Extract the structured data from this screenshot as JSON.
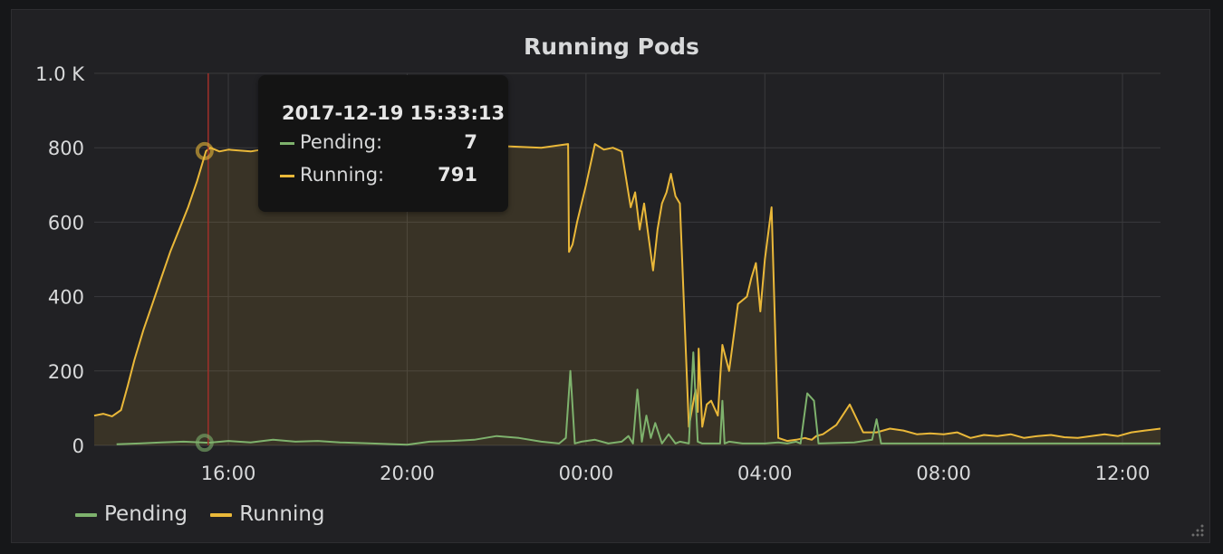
{
  "panel": {
    "title": "Running Pods"
  },
  "tooltip": {
    "time": "2017-12-19 15:33:13",
    "rows": [
      {
        "label": "Pending:",
        "value": "7",
        "color": "#7eb26d"
      },
      {
        "label": "Running:",
        "value": "791",
        "color": "#eab839"
      }
    ]
  },
  "legend": [
    {
      "label": "Pending",
      "color": "#7eb26d"
    },
    {
      "label": "Running",
      "color": "#eab839"
    }
  ],
  "chart_data": {
    "type": "line",
    "title": "Running Pods",
    "xlabel": "",
    "ylabel": "",
    "x_unit": "hours since 2017-12-19 00:00 (values past 24 are 2017-12-20)",
    "xlim": [
      13.0,
      36.85
    ],
    "ylim": [
      0,
      1000
    ],
    "x_ticks": [
      {
        "x": 16,
        "label": "16:00"
      },
      {
        "x": 20,
        "label": "20:00"
      },
      {
        "x": 24,
        "label": "00:00"
      },
      {
        "x": 28,
        "label": "04:00"
      },
      {
        "x": 32,
        "label": "08:00"
      },
      {
        "x": 36,
        "label": "12:00"
      }
    ],
    "y_ticks": [
      {
        "y": 0,
        "label": "0"
      },
      {
        "y": 200,
        "label": "200"
      },
      {
        "y": 400,
        "label": "400"
      },
      {
        "y": 600,
        "label": "600"
      },
      {
        "y": 800,
        "label": "800"
      },
      {
        "y": 1000,
        "label": "1.0 K"
      }
    ],
    "grid": true,
    "legend_position": "bottom-left",
    "crosshair": {
      "x": 15.55,
      "points": [
        {
          "series": "Running",
          "y": 791
        },
        {
          "series": "Pending",
          "y": 7
        }
      ]
    },
    "series": [
      {
        "name": "Running",
        "color": "#eab839",
        "fill": true,
        "x": [
          13.0,
          13.2,
          13.4,
          13.6,
          13.75,
          13.9,
          14.1,
          14.3,
          14.5,
          14.7,
          14.9,
          15.1,
          15.3,
          15.5,
          15.6,
          15.8,
          16.0,
          16.5,
          17.0,
          18.0,
          19.0,
          20.0,
          21.0,
          22.0,
          23.0,
          23.6,
          23.62,
          23.7,
          23.8,
          24.0,
          24.2,
          24.4,
          24.6,
          24.8,
          25.0,
          25.1,
          25.2,
          25.3,
          25.4,
          25.5,
          25.6,
          25.7,
          25.8,
          25.9,
          26.0,
          26.1,
          26.3,
          26.45,
          26.5,
          26.52,
          26.6,
          26.7,
          26.8,
          26.95,
          27.0,
          27.05,
          27.2,
          27.4,
          27.6,
          27.7,
          27.8,
          27.9,
          28.0,
          28.15,
          28.3,
          28.5,
          28.7,
          28.9,
          28.95,
          29.05,
          29.15,
          29.3,
          29.6,
          29.9,
          30.2,
          30.5,
          30.8,
          31.1,
          31.4,
          31.7,
          32.0,
          32.3,
          32.6,
          32.9,
          33.2,
          33.5,
          33.8,
          34.1,
          34.4,
          34.7,
          35.0,
          35.3,
          35.6,
          35.9,
          36.2,
          36.5,
          36.85
        ],
        "y": [
          80,
          85,
          78,
          95,
          160,
          230,
          310,
          380,
          450,
          520,
          580,
          640,
          710,
          791,
          800,
          790,
          795,
          790,
          800,
          795,
          800,
          800,
          795,
          805,
          800,
          810,
          520,
          540,
          600,
          700,
          810,
          795,
          800,
          790,
          640,
          680,
          580,
          650,
          560,
          470,
          580,
          650,
          680,
          730,
          670,
          650,
          50,
          150,
          90,
          260,
          50,
          110,
          120,
          80,
          180,
          270,
          200,
          380,
          400,
          450,
          490,
          360,
          500,
          640,
          20,
          12,
          15,
          20,
          18,
          15,
          25,
          30,
          55,
          110,
          35,
          35,
          45,
          40,
          30,
          32,
          30,
          35,
          20,
          28,
          25,
          30,
          20,
          25,
          28,
          22,
          20,
          25,
          30,
          25,
          35,
          40,
          45
        ]
      },
      {
        "name": "Pending",
        "color": "#7eb26d",
        "fill": false,
        "x": [
          13.5,
          14.0,
          14.5,
          15.0,
          15.55,
          16.0,
          16.5,
          17.0,
          17.5,
          18.0,
          18.5,
          19.0,
          19.5,
          20.0,
          20.5,
          21.0,
          21.5,
          22.0,
          22.5,
          23.0,
          23.4,
          23.55,
          23.65,
          23.75,
          23.9,
          24.2,
          24.5,
          24.8,
          24.95,
          25.05,
          25.15,
          25.25,
          25.35,
          25.45,
          25.55,
          25.7,
          25.85,
          26.0,
          26.1,
          26.3,
          26.4,
          26.5,
          26.6,
          27.0,
          27.05,
          27.1,
          27.2,
          27.5,
          28.0,
          28.3,
          28.5,
          28.7,
          28.8,
          28.95,
          29.1,
          29.2,
          30.0,
          30.4,
          30.5,
          30.6,
          31.0,
          32.0,
          33.0,
          34.0,
          35.0,
          36.0,
          36.85
        ],
        "y": [
          3,
          5,
          8,
          10,
          7,
          12,
          8,
          15,
          10,
          12,
          8,
          6,
          4,
          2,
          10,
          12,
          15,
          25,
          20,
          10,
          5,
          20,
          200,
          5,
          10,
          15,
          5,
          10,
          25,
          5,
          150,
          10,
          80,
          20,
          60,
          5,
          30,
          5,
          10,
          5,
          250,
          10,
          5,
          5,
          120,
          5,
          10,
          5,
          5,
          8,
          5,
          10,
          5,
          140,
          120,
          5,
          8,
          15,
          70,
          5,
          5,
          5,
          5,
          5,
          5,
          5,
          5
        ]
      }
    ]
  }
}
